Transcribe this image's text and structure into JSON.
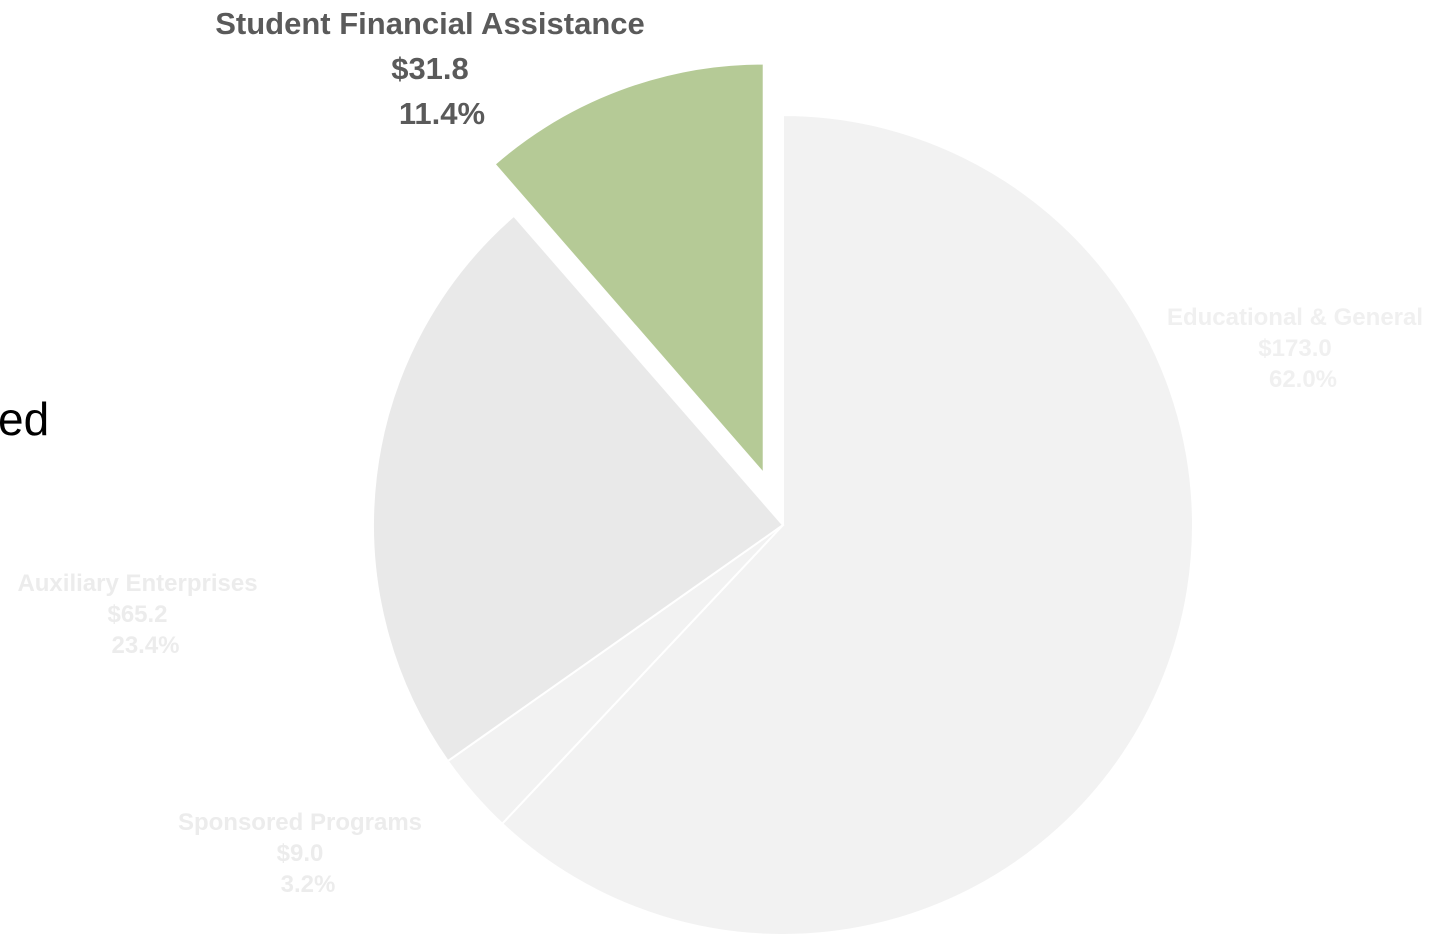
{
  "partial_text": "ed",
  "chart_data": {
    "type": "pie",
    "title": "",
    "exploded": "Student Financial Assistance",
    "slices": [
      {
        "name": "Educational & General",
        "value_label": "$173.0",
        "percent_label": "62.0%",
        "value": 173.0,
        "percent": 62.0,
        "color": "#f2f2f2",
        "label_color": "#f0f0f0"
      },
      {
        "name": "Sponsored Programs",
        "value_label": "$9.0",
        "percent_label": "3.2%",
        "value": 9.0,
        "percent": 3.2,
        "color": "#f2f2f2",
        "label_color": "#ececec"
      },
      {
        "name": "Auxiliary Enterprises",
        "value_label": "$65.2",
        "percent_label": "23.4%",
        "value": 65.2,
        "percent": 23.4,
        "color": "#e9e9e9",
        "label_color": "#ececec"
      },
      {
        "name": "Student Financial Assistance",
        "value_label": "$31.8",
        "percent_label": "11.4%",
        "value": 31.8,
        "percent": 11.4,
        "color": "#b5ca96",
        "label_color": "#5a5a5a"
      }
    ]
  }
}
